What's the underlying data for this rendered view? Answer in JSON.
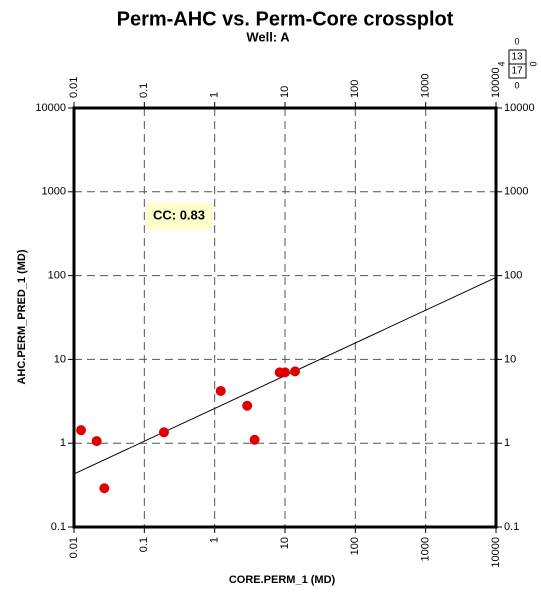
{
  "chart_data": {
    "type": "scatter",
    "title": "Perm-AHC vs. Perm-Core crossplot",
    "subtitle": "Well: A",
    "x_label": "CORE.PERM_1 (MD)",
    "y_label": "AHC.PERM_PRED_1 (MD)",
    "annotation": "CC: 0.83",
    "log_x": true,
    "log_y": true,
    "grid": true,
    "xlim": [
      0.01,
      10000
    ],
    "xticks": [
      0.01,
      0.1,
      1,
      10,
      100,
      1000,
      10000
    ],
    "ylim": [
      0.1,
      10000
    ],
    "yticks": [
      0.1,
      1,
      10,
      100,
      1000,
      10000
    ],
    "series": [
      {
        "color": "#e00000",
        "x": [
          0.0126,
          0.021,
          0.027,
          0.19,
          1.22,
          2.9,
          3.7,
          8.4,
          10,
          13.9
        ],
        "values": [
          1.43,
          1.06,
          0.29,
          1.35,
          4.2,
          2.8,
          1.1,
          7.0,
          7.0,
          7.2
        ]
      }
    ],
    "fit_line": {
      "color": "#000000",
      "x": [
        0.01,
        10000
      ],
      "y": [
        0.43,
        95
      ]
    },
    "corner_counts": {
      "top": "0",
      "upper": "13",
      "lower": "17",
      "bottom": "0",
      "left": "4",
      "right": "0"
    }
  }
}
